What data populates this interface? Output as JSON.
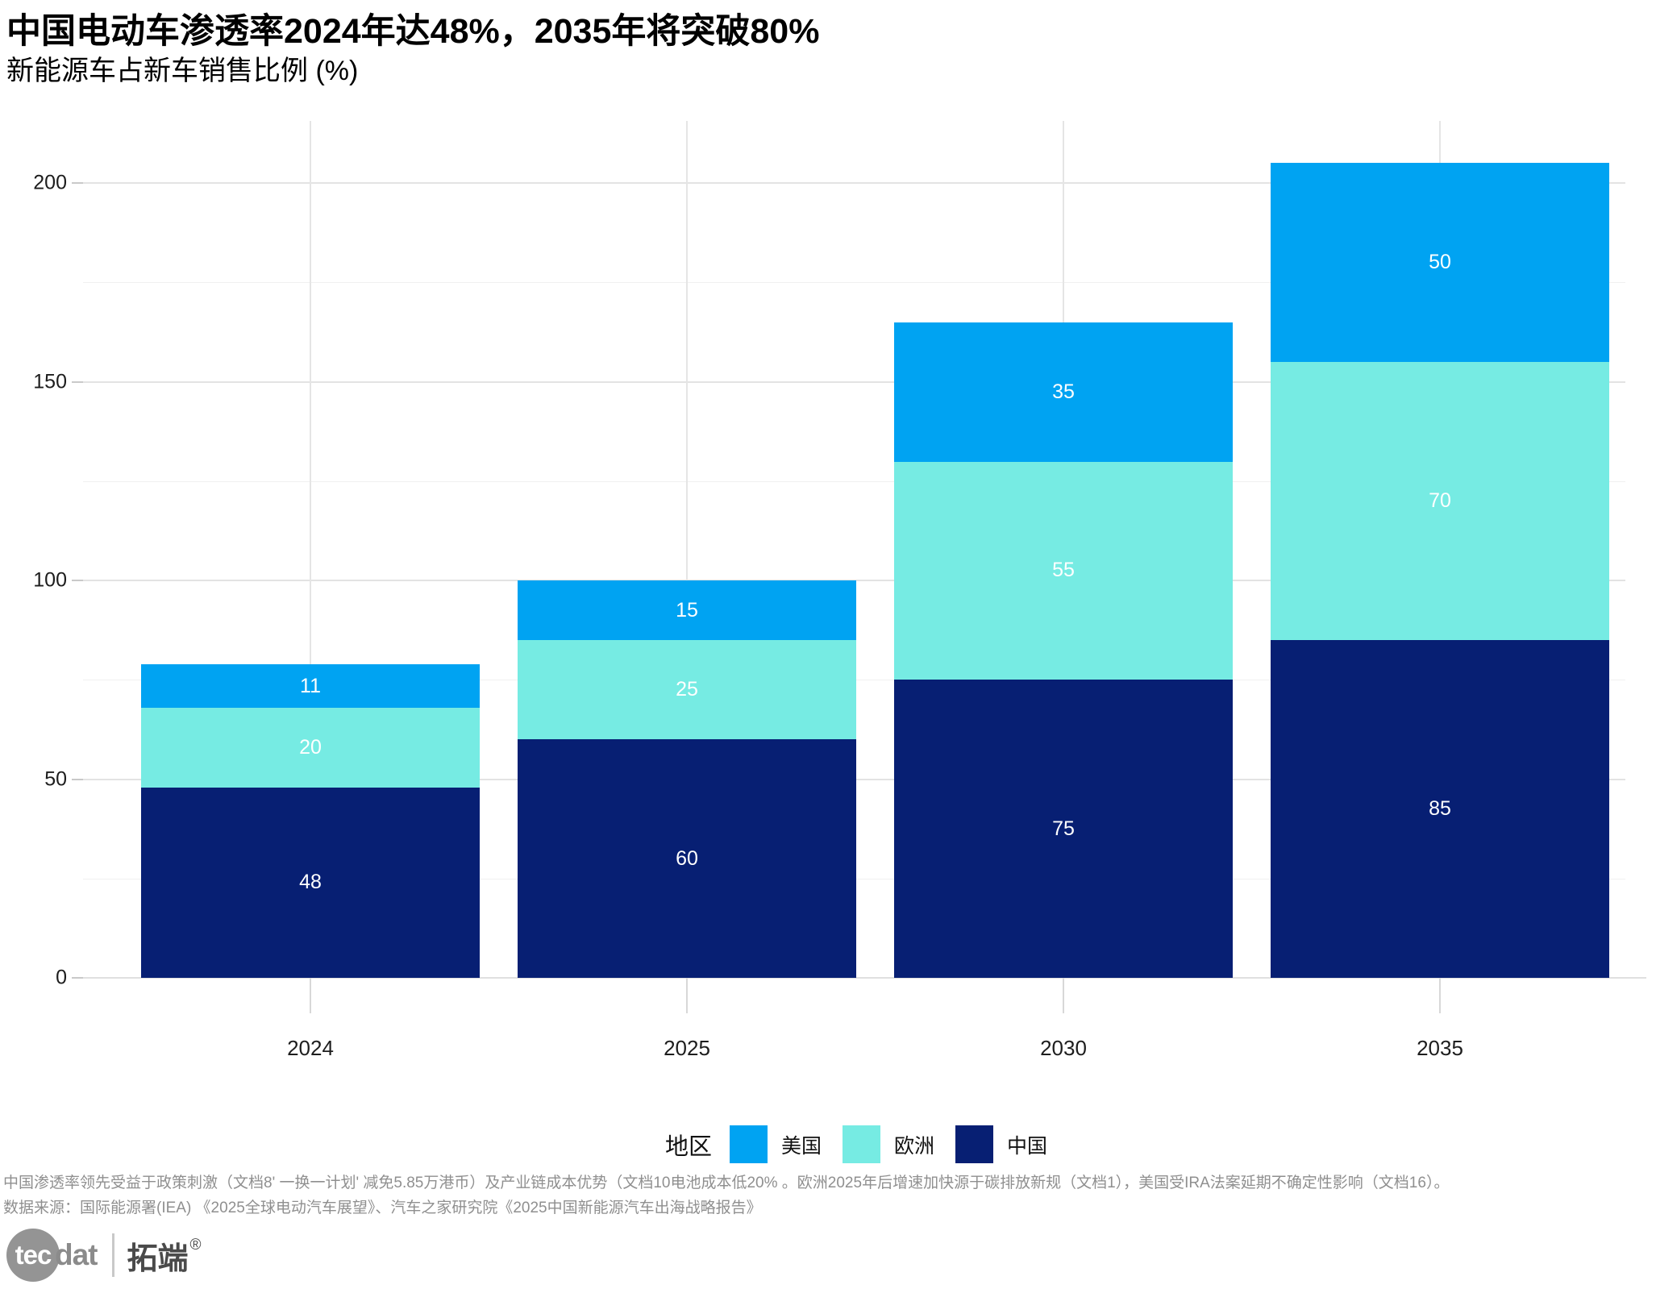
{
  "header": {
    "title": "中国电动车渗透率2024年达48%，2035年将突破80%",
    "subtitle": "新能源车占新车销售比例 (%)"
  },
  "chart_data": {
    "type": "bar",
    "stacked": true,
    "orientation": "vertical",
    "title": "中国电动车渗透率2024年达48%，2035年将突破80%",
    "subtitle": "新能源车占新车销售比例 (%)",
    "categories": [
      "2024",
      "2025",
      "2030",
      "2035"
    ],
    "series": [
      {
        "name": "中国",
        "color": "#071F73",
        "values": [
          48,
          60,
          75,
          85
        ]
      },
      {
        "name": "欧洲",
        "color": "#76EBE3",
        "values": [
          20,
          25,
          55,
          70
        ]
      },
      {
        "name": "美国",
        "color": "#00A3F2",
        "values": [
          11,
          15,
          35,
          50
        ]
      }
    ],
    "stack_order_bottom_to_top": [
      "中国",
      "欧洲",
      "美国"
    ],
    "totals": [
      79,
      100,
      165,
      205
    ],
    "value_labels_color": "#FFFFFF",
    "y_axis": {
      "range": [
        0,
        215
      ],
      "ticks_major": [
        0,
        50,
        100,
        150,
        200
      ],
      "ticks_minor": [
        25,
        75,
        125,
        175
      ]
    },
    "x_axis": {
      "labels": [
        "2024",
        "2025",
        "2030",
        "2035"
      ]
    },
    "grid": "horizontal major+minor gray lines, vertical gray line at each category center",
    "legend_position": "bottom"
  },
  "legend": {
    "title": "地区",
    "items": [
      {
        "label": "美国",
        "color": "#00A3F2"
      },
      {
        "label": "欧洲",
        "color": "#76EBE3"
      },
      {
        "label": "中国",
        "color": "#071F73"
      }
    ]
  },
  "footnotes": {
    "line1": "中国渗透率领先受益于政策刺激（文档8' 一换一计划' 减免5.85万港币）及产业链成本优势（文档10电池成本低20% 。欧洲2025年后增速加快源于碳排放新规（文档1），美国受IRA法案延期不确定性影响（文档16）。",
    "line2": "数据来源：国际能源署(IEA) 《2025全球电动汽车展望》、汽车之家研究院《2025中国新能源汽车出海战略报告》"
  },
  "logo": {
    "brand_en_head": "tec",
    "brand_en_tail": "dat",
    "brand_cn": "拓端",
    "registered": "®"
  },
  "colors": {
    "us_blue": "#00A3F2",
    "europe_cyan": "#76EBE3",
    "china_navy": "#071F73",
    "grid_major": "#E3E3E3",
    "grid_minor": "#F0F0F0",
    "axis_line": "#E0E0E0",
    "tick": "#C9C9C9",
    "footnote_gray": "#8F8F8F"
  }
}
